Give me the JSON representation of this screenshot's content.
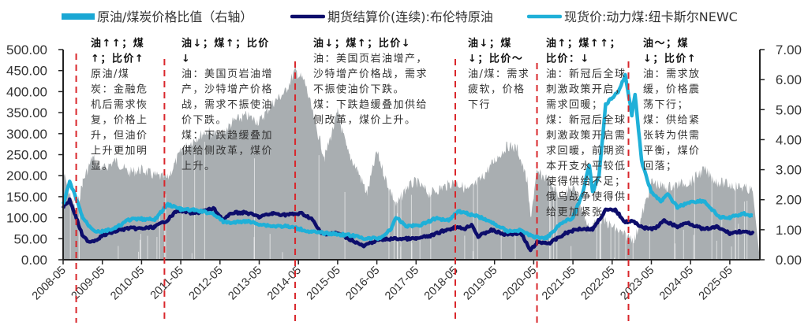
{
  "chart_data": {
    "type": "line",
    "legend": [
      {
        "name": "原油/煤炭价格比值（右轴）",
        "color": "#1aa7d4",
        "swatch": "bar"
      },
      {
        "name": "期货结算价(连续):布伦特原油",
        "color": "#0d0d6b",
        "swatch": "line"
      },
      {
        "name": "现货价:动力煤:纽卡斯尔NEWC",
        "color": "#1fb0d8",
        "swatch": "line"
      }
    ],
    "legend_position": "top",
    "x_ticks": [
      "2008-05",
      "2009-05",
      "2010-05",
      "2011-05",
      "2012-05",
      "2013-05",
      "2014-05",
      "2015-05",
      "2016-05",
      "2017-05",
      "2018-05",
      "2019-05",
      "2020-05",
      "2021-05",
      "2022-05",
      "2023-05",
      "2024-05",
      "2025-05"
    ],
    "xlim": [
      "2008-05",
      "2025-12"
    ],
    "y_left": {
      "ticks": [
        "0.00",
        "50.00",
        "100.00",
        "150.00",
        "200.00",
        "250.00",
        "300.00",
        "350.00",
        "400.00",
        "450.00",
        "500.00"
      ],
      "range": [
        0,
        500
      ]
    },
    "y_right": {
      "ticks": [
        "0.00",
        "1.00",
        "2.00",
        "3.00",
        "4.00",
        "5.00",
        "6.00",
        "7.00"
      ],
      "range": [
        0,
        7
      ]
    },
    "series": [
      {
        "name": "原油/煤炭价格比值（右轴）",
        "axis": "right",
        "style": "area",
        "color": "#a9aeb1",
        "points": [
          [
            "2008-05",
            2.9
          ],
          [
            "2008-07",
            2.2
          ],
          [
            "2008-09",
            1.6
          ],
          [
            "2008-11",
            2.6
          ],
          [
            "2009-02",
            3.4
          ],
          [
            "2009-05",
            3.0
          ],
          [
            "2009-09",
            3.3
          ],
          [
            "2010-01",
            2.9
          ],
          [
            "2010-05",
            3.0
          ],
          [
            "2010-09",
            2.8
          ],
          [
            "2011-01",
            2.7
          ],
          [
            "2011-05",
            3.6
          ],
          [
            "2011-09",
            4.0
          ],
          [
            "2012-01",
            4.3
          ],
          [
            "2012-05",
            4.1
          ],
          [
            "2012-09",
            4.6
          ],
          [
            "2013-01",
            4.8
          ],
          [
            "2013-05",
            4.6
          ],
          [
            "2013-09",
            5.2
          ],
          [
            "2014-01",
            5.6
          ],
          [
            "2014-04",
            6.3
          ],
          [
            "2014-07",
            5.9
          ],
          [
            "2014-10",
            4.6
          ],
          [
            "2015-01",
            3.4
          ],
          [
            "2015-05",
            4.9
          ],
          [
            "2015-08",
            3.6
          ],
          [
            "2015-11",
            3.0
          ],
          [
            "2016-02",
            2.2
          ],
          [
            "2016-05",
            3.6
          ],
          [
            "2016-08",
            2.6
          ],
          [
            "2016-11",
            1.8
          ],
          [
            "2017-02",
            2.4
          ],
          [
            "2017-05",
            2.6
          ],
          [
            "2017-09",
            2.2
          ],
          [
            "2018-01",
            2.4
          ],
          [
            "2018-05",
            2.6
          ],
          [
            "2018-09",
            2.3
          ],
          [
            "2019-01",
            2.7
          ],
          [
            "2019-05",
            3.3
          ],
          [
            "2019-09",
            3.8
          ],
          [
            "2019-12",
            3.7
          ],
          [
            "2020-03",
            2.6
          ],
          [
            "2020-04",
            1.4
          ],
          [
            "2020-06",
            2.9
          ],
          [
            "2020-09",
            2.7
          ],
          [
            "2021-01",
            2.1
          ],
          [
            "2021-05",
            2.4
          ],
          [
            "2021-08",
            1.6
          ],
          [
            "2021-10",
            1.0
          ],
          [
            "2022-01",
            1.4
          ],
          [
            "2022-05",
            1.1
          ],
          [
            "2022-09",
            0.8
          ],
          [
            "2022-12",
            0.7
          ],
          [
            "2023-03",
            1.8
          ],
          [
            "2023-05",
            2.6
          ],
          [
            "2023-09",
            2.4
          ],
          [
            "2024-01",
            2.5
          ],
          [
            "2024-05",
            2.6
          ],
          [
            "2024-09",
            3.0
          ],
          [
            "2025-01",
            2.6
          ],
          [
            "2025-05",
            2.5
          ],
          [
            "2025-09",
            2.4
          ],
          [
            "2025-12",
            2.3
          ]
        ]
      },
      {
        "name": "期货结算价(连续):布伦特原油",
        "axis": "left",
        "style": "line",
        "color": "#0d0d6b",
        "points": [
          [
            "2008-05",
            125
          ],
          [
            "2008-07",
            142
          ],
          [
            "2008-09",
            100
          ],
          [
            "2008-11",
            55
          ],
          [
            "2009-01",
            43
          ],
          [
            "2009-03",
            47
          ],
          [
            "2009-05",
            57
          ],
          [
            "2009-09",
            68
          ],
          [
            "2010-01",
            75
          ],
          [
            "2010-05",
            74
          ],
          [
            "2010-09",
            78
          ],
          [
            "2011-01",
            95
          ],
          [
            "2011-04",
            118
          ],
          [
            "2011-09",
            110
          ],
          [
            "2012-03",
            122
          ],
          [
            "2012-06",
            95
          ],
          [
            "2012-09",
            112
          ],
          [
            "2013-01",
            112
          ],
          [
            "2013-05",
            102
          ],
          [
            "2013-09",
            110
          ],
          [
            "2014-01",
            107
          ],
          [
            "2014-06",
            110
          ],
          [
            "2014-09",
            98
          ],
          [
            "2014-12",
            62
          ],
          [
            "2015-05",
            63
          ],
          [
            "2015-09",
            48
          ],
          [
            "2016-01",
            32
          ],
          [
            "2016-05",
            47
          ],
          [
            "2016-10",
            50
          ],
          [
            "2017-05",
            50
          ],
          [
            "2017-10",
            58
          ],
          [
            "2018-01",
            68
          ],
          [
            "2018-05",
            77
          ],
          [
            "2018-08",
            74
          ],
          [
            "2018-10",
            84
          ],
          [
            "2018-12",
            55
          ],
          [
            "2019-04",
            71
          ],
          [
            "2019-08",
            60
          ],
          [
            "2020-01",
            64
          ],
          [
            "2020-04",
            22
          ],
          [
            "2020-06",
            41
          ],
          [
            "2020-10",
            40
          ],
          [
            "2021-03",
            64
          ],
          [
            "2021-07",
            74
          ],
          [
            "2021-11",
            73
          ],
          [
            "2022-03",
            118
          ],
          [
            "2022-06",
            118
          ],
          [
            "2022-09",
            90
          ],
          [
            "2022-11",
            92
          ],
          [
            "2023-03",
            75
          ],
          [
            "2023-06",
            74
          ],
          [
            "2023-09",
            93
          ],
          [
            "2024-01",
            78
          ],
          [
            "2024-04",
            89
          ],
          [
            "2024-09",
            72
          ],
          [
            "2025-01",
            78
          ],
          [
            "2025-05",
            63
          ],
          [
            "2025-08",
            67
          ],
          [
            "2025-12",
            63
          ]
        ]
      },
      {
        "name": "现货价:动力煤:纽卡斯尔NEWC",
        "axis": "left",
        "style": "line",
        "color": "#1fb0d8",
        "points": [
          [
            "2008-05",
            130
          ],
          [
            "2008-07",
            185
          ],
          [
            "2008-09",
            145
          ],
          [
            "2008-11",
            100
          ],
          [
            "2009-01",
            80
          ],
          [
            "2009-03",
            68
          ],
          [
            "2009-05",
            67
          ],
          [
            "2009-09",
            75
          ],
          [
            "2010-01",
            95
          ],
          [
            "2010-05",
            97
          ],
          [
            "2010-09",
            95
          ],
          [
            "2011-01",
            132
          ],
          [
            "2011-05",
            120
          ],
          [
            "2011-09",
            118
          ],
          [
            "2012-03",
            110
          ],
          [
            "2012-06",
            90
          ],
          [
            "2012-09",
            88
          ],
          [
            "2013-01",
            92
          ],
          [
            "2013-05",
            85
          ],
          [
            "2013-09",
            80
          ],
          [
            "2014-01",
            80
          ],
          [
            "2014-05",
            74
          ],
          [
            "2014-09",
            66
          ],
          [
            "2015-03",
            62
          ],
          [
            "2015-09",
            58
          ],
          [
            "2016-02",
            50
          ],
          [
            "2016-06",
            52
          ],
          [
            "2016-09",
            70
          ],
          [
            "2016-11",
            100
          ],
          [
            "2017-02",
            80
          ],
          [
            "2017-06",
            82
          ],
          [
            "2017-11",
            98
          ],
          [
            "2018-03",
            95
          ],
          [
            "2018-06",
            116
          ],
          [
            "2018-10",
            107
          ],
          [
            "2019-01",
            100
          ],
          [
            "2019-05",
            85
          ],
          [
            "2019-09",
            68
          ],
          [
            "2020-01",
            70
          ],
          [
            "2020-05",
            54
          ],
          [
            "2020-09",
            52
          ],
          [
            "2021-01",
            85
          ],
          [
            "2021-05",
            100
          ],
          [
            "2021-08",
            160
          ],
          [
            "2021-10",
            225
          ],
          [
            "2021-11",
            160
          ],
          [
            "2022-01",
            200
          ],
          [
            "2022-03",
            370
          ],
          [
            "2022-05",
            385
          ],
          [
            "2022-07",
            400
          ],
          [
            "2022-09",
            440
          ],
          [
            "2022-11",
            345
          ],
          [
            "2022-12",
            395
          ],
          [
            "2023-02",
            235
          ],
          [
            "2023-05",
            160
          ],
          [
            "2023-08",
            140
          ],
          [
            "2023-10",
            155
          ],
          [
            "2024-01",
            125
          ],
          [
            "2024-05",
            138
          ],
          [
            "2024-09",
            140
          ],
          [
            "2025-02",
            100
          ],
          [
            "2025-05",
            100
          ],
          [
            "2025-09",
            110
          ],
          [
            "2025-12",
            105
          ]
        ]
      }
    ],
    "dividers": [
      "2008-09",
      "2010-12",
      "2014-04",
      "2018-05",
      "2020-06",
      "2022-10"
    ],
    "divider_color": "#d9262b",
    "annotations": [
      {
        "head": [
          "油↑↑；煤",
          "↑；比价↑"
        ],
        "body": [
          "原油/煤",
          "炭：金融危",
          "机后需求恢",
          "复，价格上",
          "升，但油价",
          "上升更加明",
          "显。"
        ]
      },
      {
        "head": [
          "油↓；煤↑；比价",
          "↓"
        ],
        "body": [
          "油：美国页岩油增",
          "产，沙特增产价格",
          "战，需求不振使油",
          "价下跌。",
          "煤：下跌趋缓叠加",
          "供给侧改革，煤价",
          "上升。"
        ]
      },
      {
        "head": [
          "油↓；煤↑；比价↓"
        ],
        "body": [
          "油：美国页岩油增产，",
          "沙特增产价格战，需求",
          "不振使油价下跌。",
          "煤：下跌趋缓叠加供给",
          "侧改革，煤价上升。"
        ]
      },
      {
        "head": [
          "油↓；煤",
          "↓；比价～"
        ],
        "body": [
          "油/煤：需求",
          "疲软，价格",
          "下行"
        ]
      },
      {
        "head": [
          "油↑；煤↑↑；",
          "比价：↓"
        ],
        "body": [
          "油：新冠后全球",
          "刺激政策开启，",
          "需求回暖；",
          "煤：新冠后全球",
          "刺激政策开启需",
          "求回暖，前期资",
          "本开支水平较低",
          "使得供给不足；",
          "俄乌战争使得供",
          "给更加紧张"
        ]
      },
      {
        "head": [
          "油～；煤",
          "↓；比价↑"
        ],
        "body": [
          "油：需求放",
          "缓，价格震",
          "荡下行；",
          "煤：供给紧",
          "张转为供需",
          "平衡，煤价",
          "回落；"
        ]
      }
    ]
  }
}
